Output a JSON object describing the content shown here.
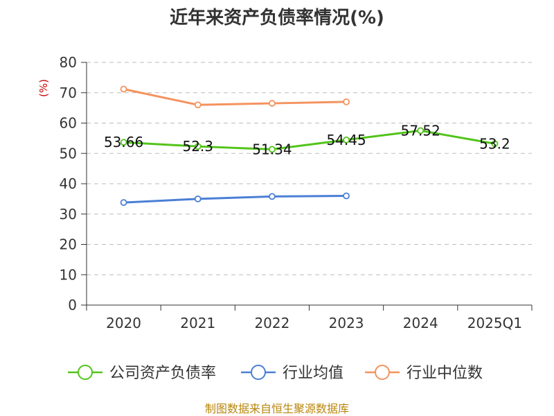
{
  "chart_data": {
    "type": "line",
    "title": "近年来资产负债率情况(%)",
    "ylabel": "(%)",
    "categories": [
      "2020",
      "2021",
      "2022",
      "2023",
      "2024",
      "2025Q1"
    ],
    "ylim": [
      0,
      80
    ],
    "yticks": [
      0,
      10,
      20,
      30,
      40,
      50,
      60,
      70,
      80
    ],
    "grid": true,
    "legend_position": "bottom",
    "series": [
      {
        "name": "公司资产负债率",
        "color": "#52c41a",
        "values": [
          53.66,
          52.3,
          51.34,
          54.45,
          57.52,
          53.2
        ],
        "data_labels": [
          "53.66",
          "52.3",
          "51.34",
          "54.45",
          "57.52",
          "53.2"
        ]
      },
      {
        "name": "行业均值",
        "color": "#4a7fd6",
        "values": [
          33.8,
          35.0,
          35.8,
          36.0,
          null,
          null
        ]
      },
      {
        "name": "行业中位数",
        "color": "#f5925e",
        "values": [
          71.2,
          66.0,
          66.5,
          67.0,
          null,
          null
        ]
      }
    ],
    "source": "制图数据来自恒生聚源数据库"
  }
}
